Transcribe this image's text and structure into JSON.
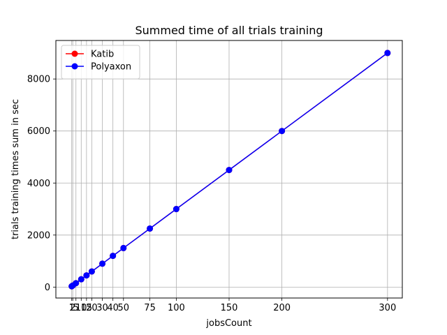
{
  "chart_data": {
    "type": "line",
    "title": "Summed time of all trials training",
    "xlabel": "jobsCount",
    "ylabel": "trials training times sum in sec",
    "x": [
      1,
      2,
      5,
      10,
      15,
      20,
      30,
      40,
      50,
      75,
      100,
      150,
      200,
      300
    ],
    "xticks": [
      1,
      2,
      5,
      10,
      15,
      20,
      30,
      40,
      50,
      75,
      100,
      150,
      200,
      300
    ],
    "xtick_labels": [
      "1",
      "2",
      "5",
      "10",
      "15",
      "20",
      "30",
      "40",
      "50",
      "75",
      "100",
      "150",
      "200",
      "300"
    ],
    "yticks": [
      0,
      2000,
      4000,
      6000,
      8000
    ],
    "xlim": [
      -14,
      314
    ],
    "ylim": [
      -420,
      9480
    ],
    "grid": true,
    "legend_position": "upper-left",
    "series": [
      {
        "name": "Katib",
        "color": "#ff0000",
        "marker": "circle",
        "values": [
          30,
          60,
          150,
          300,
          450,
          600,
          900,
          1200,
          1500,
          2250,
          3000,
          4500,
          6000,
          9000
        ]
      },
      {
        "name": "Polyaxon",
        "color": "#0000ff",
        "marker": "circle",
        "values": [
          30,
          60,
          150,
          300,
          450,
          600,
          900,
          1200,
          1500,
          2250,
          3000,
          4500,
          6000,
          9000
        ]
      }
    ]
  }
}
